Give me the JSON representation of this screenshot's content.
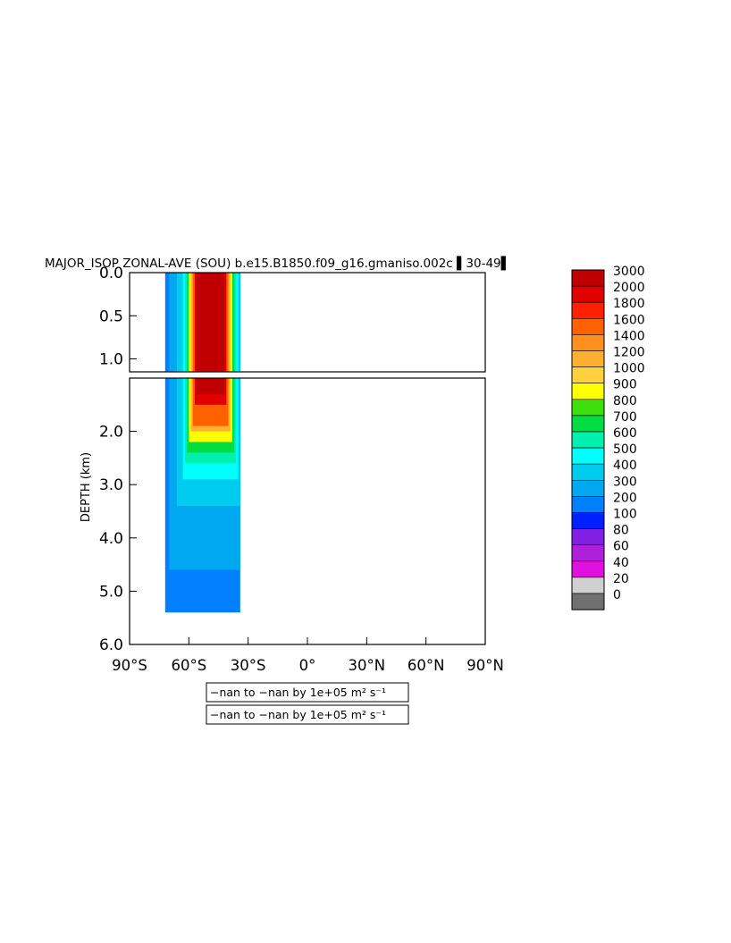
{
  "chart_data": {
    "type": "heatmap",
    "title": "MAJOR_ISOP ZONAL-AVE (SOU) b.e15.B1850.f09_g16.gmaniso.002c ▌30-49▌",
    "ylabel": "DEPTH (km)",
    "xlabel": "",
    "x_ticks": [
      "90°S",
      "60°S",
      "30°S",
      "0°",
      "30°N",
      "60°N",
      "90°N"
    ],
    "x_tick_values": [
      -90,
      -60,
      -30,
      0,
      30,
      60,
      90
    ],
    "xlim": [
      -90,
      90
    ],
    "upper_panel": {
      "ylim": [
        0.0,
        1.15
      ],
      "y_ticks": [
        "0.0",
        "0.5",
        "1.0"
      ],
      "y_tick_values": [
        0.0,
        0.5,
        1.0
      ]
    },
    "lower_panel": {
      "ylim": [
        1.0,
        6.0
      ],
      "y_ticks": [
        "2.0",
        "3.0",
        "4.0",
        "5.0",
        "6.0"
      ],
      "y_tick_values": [
        2.0,
        3.0,
        4.0,
        5.0,
        6.0
      ]
    },
    "colorbar": {
      "levels": [
        "3000",
        "2000",
        "1800",
        "1600",
        "1400",
        "1200",
        "1000",
        "900",
        "800",
        "700",
        "600",
        "500",
        "400",
        "300",
        "200",
        "100",
        "80",
        "60",
        "40",
        "20",
        "0"
      ],
      "colors": [
        "#c00000",
        "#e00000",
        "#ff2000",
        "#ff6000",
        "#ff9020",
        "#ffb030",
        "#ffd040",
        "#ffff00",
        "#40e010",
        "#00dd40",
        "#00f0b0",
        "#00ffff",
        "#00ccf0",
        "#00a8f0",
        "#0080ff",
        "#0020ff",
        "#8020e0",
        "#b020d8",
        "#e010e0",
        "#d0d0d0",
        "#707070"
      ]
    },
    "captions": [
      "−nan to −nan by 1e+05 m² s⁻¹",
      "−nan to −nan by 1e+05 m² s⁻¹"
    ],
    "field": [
      {
        "lat": [
          -72,
          -34
        ],
        "depth": [
          0.0,
          5.4
        ],
        "value": 200
      },
      {
        "lat": [
          -70,
          -34
        ],
        "depth": [
          0.0,
          4.6
        ],
        "value": 300
      },
      {
        "lat": [
          -66,
          -34
        ],
        "depth": [
          0.0,
          3.4
        ],
        "value": 400
      },
      {
        "lat": [
          -63,
          -35
        ],
        "depth": [
          0.0,
          2.9
        ],
        "value": 500
      },
      {
        "lat": [
          -62,
          -36
        ],
        "depth": [
          0.0,
          2.6
        ],
        "value": 600
      },
      {
        "lat": [
          -61,
          -37
        ],
        "depth": [
          0.0,
          2.4
        ],
        "value": 700
      },
      {
        "lat": [
          -60,
          -38
        ],
        "depth": [
          0.0,
          2.2
        ],
        "value": 900
      },
      {
        "lat": [
          -59,
          -39
        ],
        "depth": [
          0.0,
          2.0
        ],
        "value": 1200
      },
      {
        "lat": [
          -58,
          -40
        ],
        "depth": [
          0.0,
          1.9
        ],
        "value": 1600
      },
      {
        "lat": [
          -57,
          -41
        ],
        "depth": [
          0.0,
          1.5
        ],
        "value": 2000
      },
      {
        "lat": [
          -56,
          -42
        ],
        "depth": [
          0.0,
          1.3
        ],
        "value": 3000
      }
    ]
  }
}
